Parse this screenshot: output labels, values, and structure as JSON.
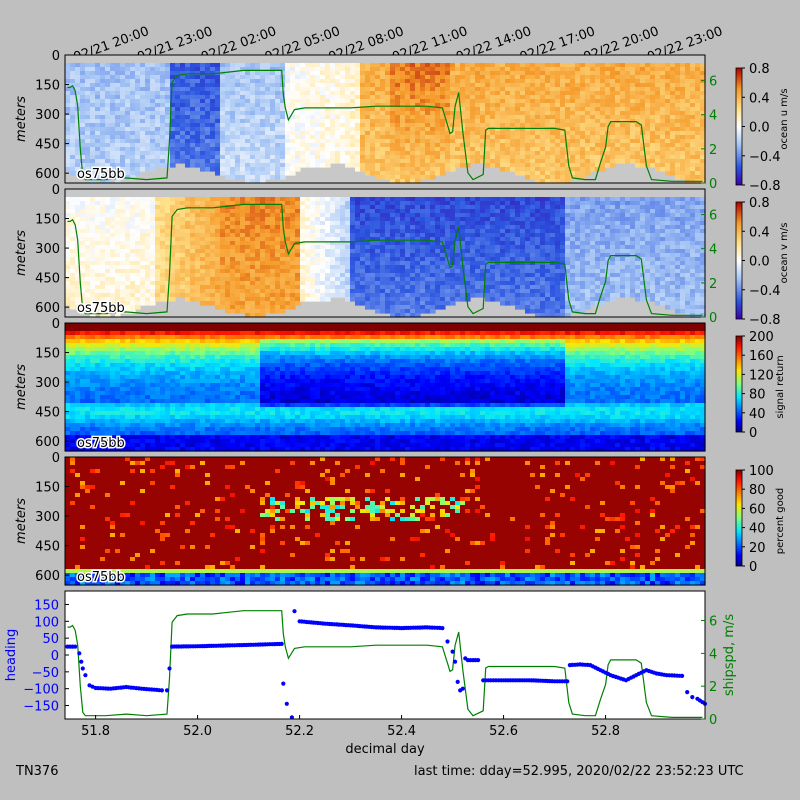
{
  "cruise_id": "TN376",
  "footer_time": "last time: dday=52.995,  2020/02/22 23:52:23 UTC",
  "chart_data": {
    "type": "heatmap",
    "x_domain": [
      51.74,
      52.995
    ],
    "date_ticks": {
      "labels": [
        "02/21 20:00",
        "02/21 23:00",
        "02/22 02:00",
        "02/22 05:00",
        "02/22 08:00",
        "02/22 11:00",
        "02/22 14:00",
        "02/22 17:00",
        "02/22 20:00",
        "02/22 23:00"
      ],
      "positions": [
        51.8333,
        51.9583,
        52.0833,
        52.2083,
        52.3333,
        52.4583,
        52.5833,
        52.7083,
        52.8333,
        52.9583
      ]
    },
    "x_axis": {
      "label": "decimal day",
      "ticks": [
        "51.8",
        "52.0",
        "52.2",
        "52.4",
        "52.6",
        "52.8"
      ],
      "tick_values": [
        51.8,
        52.0,
        52.2,
        52.4,
        52.6,
        52.8
      ]
    },
    "depth_axis": {
      "label": "meters",
      "ticks": [
        "0",
        "150",
        "300",
        "450",
        "600"
      ],
      "tick_values": [
        0,
        150,
        300,
        450,
        600
      ],
      "range": [
        0,
        650
      ]
    },
    "panels": [
      {
        "name": "ocean u",
        "tag": "os75bb",
        "colorbar_label": "ocean u m/s",
        "colormap": "bwr",
        "colorbar_ticks": [
          "0.8",
          "0.4",
          "0.0",
          "−0.4",
          "−0.8"
        ],
        "colorbar_range": [
          -0.8,
          0.8
        ],
        "right_axis_ticks": [
          "6",
          "4",
          "2",
          "0"
        ],
        "right_axis_values": [
          6,
          4,
          2,
          0
        ],
        "right_axis_range": [
          0,
          7.5
        ],
        "overlay_color": "#008000"
      },
      {
        "name": "ocean v",
        "tag": "os75bb",
        "colorbar_label": "ocean v m/s",
        "colormap": "bwr",
        "colorbar_ticks": [
          "0.8",
          "0.4",
          "0.0",
          "−0.4",
          "−0.8"
        ],
        "colorbar_range": [
          -0.8,
          0.8
        ],
        "right_axis_ticks": [
          "6",
          "4",
          "2",
          "0"
        ],
        "right_axis_values": [
          6,
          4,
          2,
          0
        ],
        "right_axis_range": [
          0,
          7.5
        ],
        "overlay_color": "#008000"
      },
      {
        "name": "signal return",
        "tag": "os75bb",
        "colorbar_label": "signal return",
        "colormap": "jet",
        "colorbar_ticks": [
          "200",
          "160",
          "120",
          "80",
          "40",
          "0"
        ],
        "colorbar_range": [
          0,
          200
        ]
      },
      {
        "name": "percent good",
        "tag": "os75bb",
        "colorbar_label": "percent good",
        "colormap": "jet",
        "colorbar_ticks": [
          "100",
          "80",
          "60",
          "40",
          "20",
          "0"
        ],
        "colorbar_range": [
          0,
          100
        ]
      }
    ],
    "bottom_panel": {
      "type": "scatter+line",
      "left_axis": {
        "label": "heading",
        "color": "#0000ff",
        "ticks": [
          "150",
          "100",
          "50",
          "0",
          "−50",
          "−100",
          "−150"
        ],
        "tick_values": [
          150,
          100,
          50,
          0,
          -50,
          -100,
          -150
        ],
        "range": [
          -190,
          190
        ]
      },
      "right_axis": {
        "label": "shipspd, m/s",
        "color": "#008000",
        "ticks": [
          "6",
          "4",
          "2",
          "0"
        ],
        "tick_values": [
          6,
          4,
          2,
          0
        ],
        "range": [
          0,
          7.8
        ]
      }
    },
    "ship_speed": [
      [
        51.745,
        5.6
      ],
      [
        51.75,
        5.6
      ],
      [
        51.755,
        5.7
      ],
      [
        51.76,
        5.4
      ],
      [
        51.765,
        4.5
      ],
      [
        51.77,
        2.0
      ],
      [
        51.775,
        0.4
      ],
      [
        51.78,
        0.2
      ],
      [
        51.82,
        0.2
      ],
      [
        51.86,
        0.3
      ],
      [
        51.9,
        0.2
      ],
      [
        51.94,
        0.3
      ],
      [
        51.945,
        2.5
      ],
      [
        51.95,
        5.9
      ],
      [
        51.96,
        6.3
      ],
      [
        51.98,
        6.4
      ],
      [
        52.0,
        6.4
      ],
      [
        52.03,
        6.4
      ],
      [
        52.06,
        6.5
      ],
      [
        52.09,
        6.6
      ],
      [
        52.12,
        6.6
      ],
      [
        52.15,
        6.6
      ],
      [
        52.165,
        6.6
      ],
      [
        52.168,
        5.2
      ],
      [
        52.172,
        4.4
      ],
      [
        52.178,
        3.7
      ],
      [
        52.19,
        4.3
      ],
      [
        52.21,
        4.4
      ],
      [
        52.25,
        4.4
      ],
      [
        52.3,
        4.4
      ],
      [
        52.35,
        4.5
      ],
      [
        52.4,
        4.5
      ],
      [
        52.45,
        4.5
      ],
      [
        52.48,
        4.4
      ],
      [
        52.49,
        3.4
      ],
      [
        52.495,
        2.9
      ],
      [
        52.5,
        3.0
      ],
      [
        52.505,
        4.5
      ],
      [
        52.512,
        5.3
      ],
      [
        52.52,
        3.0
      ],
      [
        52.53,
        0.6
      ],
      [
        52.54,
        0.2
      ],
      [
        52.56,
        0.5
      ],
      [
        52.565,
        3.1
      ],
      [
        52.57,
        3.2
      ],
      [
        52.62,
        3.2
      ],
      [
        52.67,
        3.2
      ],
      [
        52.7,
        3.2
      ],
      [
        52.72,
        3.1
      ],
      [
        52.728,
        1.0
      ],
      [
        52.735,
        0.3
      ],
      [
        52.76,
        0.2
      ],
      [
        52.78,
        0.2
      ],
      [
        52.79,
        1.2
      ],
      [
        52.8,
        2.1
      ],
      [
        52.805,
        3.3
      ],
      [
        52.81,
        3.6
      ],
      [
        52.86,
        3.6
      ],
      [
        52.87,
        3.4
      ],
      [
        52.88,
        1.0
      ],
      [
        52.89,
        0.2
      ],
      [
        52.93,
        0.1
      ],
      [
        52.96,
        0.1
      ],
      [
        52.99,
        0.1
      ]
    ],
    "heading": [
      [
        51.745,
        25
      ],
      [
        51.76,
        25
      ],
      [
        51.768,
        5
      ],
      [
        51.772,
        -20
      ],
      [
        51.775,
        -40
      ],
      [
        51.78,
        -60
      ],
      [
        51.788,
        -90
      ],
      [
        51.8,
        -98
      ],
      [
        51.83,
        -100
      ],
      [
        51.86,
        -95
      ],
      [
        51.89,
        -100
      ],
      [
        51.93,
        -105
      ],
      [
        51.94,
        -105
      ],
      [
        51.945,
        -40
      ],
      [
        51.95,
        25
      ],
      [
        52.0,
        26
      ],
      [
        52.05,
        28
      ],
      [
        52.1,
        30
      ],
      [
        52.165,
        33
      ],
      [
        52.168,
        -85
      ],
      [
        52.175,
        -145
      ],
      [
        52.185,
        -185
      ],
      [
        52.19,
        130
      ],
      [
        52.2,
        100
      ],
      [
        52.25,
        93
      ],
      [
        52.3,
        88
      ],
      [
        52.35,
        82
      ],
      [
        52.4,
        80
      ],
      [
        52.45,
        82
      ],
      [
        52.48,
        80
      ],
      [
        52.49,
        40
      ],
      [
        52.5,
        10
      ],
      [
        52.505,
        -20
      ],
      [
        52.51,
        -80
      ],
      [
        52.515,
        -105
      ],
      [
        52.52,
        -100
      ],
      [
        52.525,
        -10
      ],
      [
        52.53,
        -15
      ],
      [
        52.55,
        -15
      ],
      [
        52.56,
        -75
      ],
      [
        52.6,
        -75
      ],
      [
        52.65,
        -75
      ],
      [
        52.7,
        -78
      ],
      [
        52.725,
        -78
      ],
      [
        52.73,
        -30
      ],
      [
        52.75,
        -28
      ],
      [
        52.77,
        -30
      ],
      [
        52.79,
        -45
      ],
      [
        52.81,
        -60
      ],
      [
        52.84,
        -75
      ],
      [
        52.86,
        -60
      ],
      [
        52.88,
        -45
      ],
      [
        52.9,
        -55
      ],
      [
        52.92,
        -60
      ],
      [
        52.95,
        -62
      ],
      [
        52.96,
        -110
      ],
      [
        52.97,
        -125
      ],
      [
        52.98,
        -130
      ],
      [
        52.995,
        -145
      ]
    ]
  }
}
